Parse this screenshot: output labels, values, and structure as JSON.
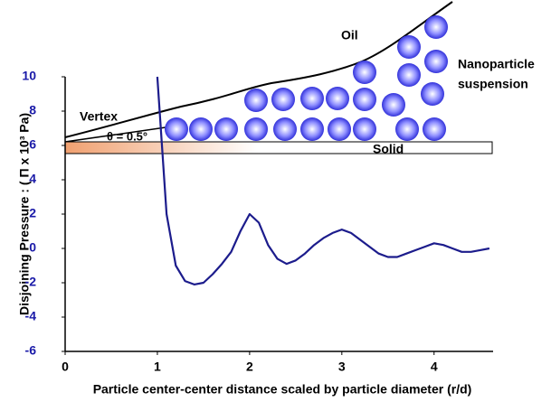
{
  "chart_data": {
    "type": "line",
    "x_label": "Particle center-center distance scaled by particle diameter (r/d)",
    "y_label": "Disjoining Pressure : ( Π x 10³ Pa)",
    "x": [
      1.0,
      1.05,
      1.1,
      1.2,
      1.3,
      1.4,
      1.5,
      1.6,
      1.7,
      1.8,
      1.9,
      2.0,
      2.1,
      2.2,
      2.3,
      2.4,
      2.5,
      2.6,
      2.7,
      2.8,
      2.9,
      3.0,
      3.1,
      3.2,
      3.3,
      3.4,
      3.5,
      3.6,
      3.7,
      3.8,
      3.9,
      4.0,
      4.1,
      4.2,
      4.3,
      4.4,
      4.5,
      4.6
    ],
    "series": [
      {
        "color": "#1c1c8c",
        "values": [
          10,
          6,
          2,
          -1,
          -1.9,
          -2.1,
          -2,
          -1.5,
          -0.9,
          -0.2,
          1,
          2,
          1.5,
          0.2,
          -0.6,
          -0.9,
          -0.7,
          -0.3,
          0.2,
          0.6,
          0.9,
          1.1,
          0.9,
          0.5,
          0.1,
          -0.3,
          -0.5,
          -0.5,
          -0.3,
          -0.1,
          0.1,
          0.3,
          0.2,
          0,
          -0.2,
          -0.2,
          -0.1,
          0
        ]
      }
    ],
    "xlim": [
      0,
      4.64
    ],
    "ylim": [
      -6,
      10
    ],
    "xticks": [
      0,
      1,
      2,
      3,
      4
    ],
    "yticks": [
      -6,
      -4,
      -2,
      0,
      2,
      4,
      6,
      8,
      10
    ],
    "annotations": [
      "Oil",
      "Nanoparticle",
      "suspension",
      "Vertex",
      "θ = 0.5°",
      "Solid"
    ]
  }
}
